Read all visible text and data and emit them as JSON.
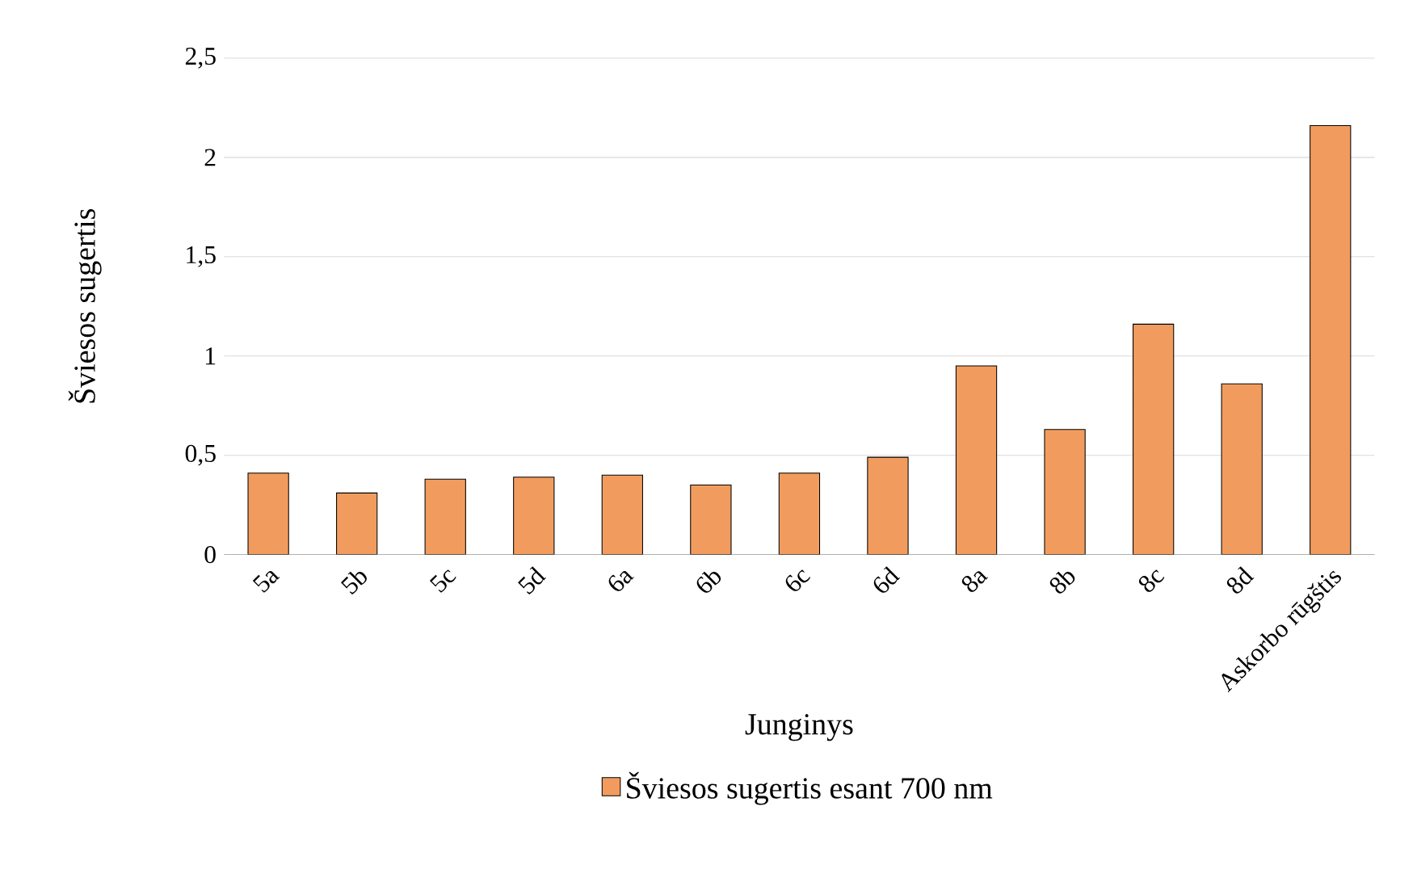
{
  "chart_data": {
    "type": "bar",
    "xlabel": "Junginys",
    "ylabel": "Šviesos sugertis",
    "categories": [
      "5a",
      "5b",
      "5c",
      "5d",
      "6a",
      "6b",
      "6c",
      "6d",
      "8a",
      "8b",
      "8c",
      "8d",
      "Askorbo rūgštis"
    ],
    "series": [
      {
        "name": "Šviesos sugertis esant 700 nm",
        "color": "#f19c5e",
        "values": [
          0.41,
          0.31,
          0.38,
          0.39,
          0.4,
          0.35,
          0.41,
          0.49,
          0.95,
          0.63,
          1.16,
          0.86,
          2.16
        ]
      }
    ],
    "ylim": [
      0,
      2.5
    ],
    "yticks": [
      0,
      {
        "value": 0.5,
        "label": "0,5"
      },
      1,
      {
        "value": 1.5,
        "label": "1,5"
      },
      2,
      {
        "value": 2.5,
        "label": "2,5"
      }
    ],
    "grid": "y",
    "legend": "bottom"
  }
}
